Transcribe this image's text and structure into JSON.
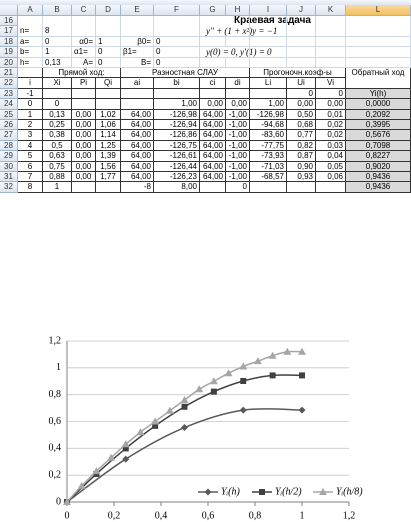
{
  "sheet": {
    "columns": [
      "A",
      "B",
      "C",
      "D",
      "E",
      "F",
      "G",
      "H",
      "I",
      "J",
      "K",
      "L"
    ],
    "rows": [
      {
        "n": "16",
        "cells": [
          null,
          null,
          null,
          null,
          null,
          null,
          "Краевая задача",
          null,
          null,
          null,
          null,
          null
        ]
      },
      {
        "n": "17",
        "cells": [
          "n=",
          "8",
          null,
          null,
          null,
          null,
          "y'' + (1 + x²)y = −1",
          null,
          null,
          null,
          null,
          null
        ]
      },
      {
        "n": "18",
        "cells": [
          "a=",
          "0",
          "α0=",
          "1",
          "β0=",
          "0",
          null,
          null,
          null,
          null,
          null,
          null
        ]
      },
      {
        "n": "19",
        "cells": [
          "b=",
          "1",
          "α1=",
          "0",
          "β1=",
          "0",
          "y(0) = 0,   y'(1) = 0",
          null,
          null,
          null,
          null,
          null
        ]
      },
      {
        "n": "20",
        "cells": [
          "h=",
          "0,13",
          "A=",
          "0",
          "B=",
          "0",
          null,
          null,
          null,
          null,
          null,
          null
        ]
      },
      {
        "n": "21",
        "cells": [
          null,
          "Прямой ход:",
          null,
          null,
          "Разностная СЛАУ",
          null,
          null,
          null,
          "Прогоночн.коэф-ы",
          null,
          null,
          "Обратный ход"
        ]
      },
      {
        "n": "22",
        "cells": [
          "i",
          "Xi",
          "Pi",
          "Qi",
          "ai",
          "bi",
          "ci",
          "di",
          "Li",
          "Ui",
          "Vi",
          null
        ]
      },
      {
        "n": "23",
        "cells": [
          "-1",
          null,
          null,
          null,
          null,
          null,
          null,
          null,
          null,
          "0",
          "0",
          "Yi(h)"
        ]
      },
      {
        "n": "24",
        "cells": [
          "0",
          "0",
          null,
          null,
          null,
          "1,00",
          "0,00",
          "0,00",
          "1,00",
          "0,00",
          "0,00",
          "0,0000"
        ]
      },
      {
        "n": "25",
        "cells": [
          "1",
          "0,13",
          "0,00",
          "1,02",
          "64,00",
          "-126,98",
          "64,00",
          "-1,00",
          "-126,98",
          "0,50",
          "0,01",
          "0,2092"
        ]
      },
      {
        "n": "26",
        "cells": [
          "2",
          "0,25",
          "0,00",
          "1,06",
          "64,00",
          "-126,94",
          "64,00",
          "-1,00",
          "-94,68",
          "0,68",
          "0,02",
          "0,3995"
        ]
      },
      {
        "n": "27",
        "cells": [
          "3",
          "0,38",
          "0,00",
          "1,14",
          "64,00",
          "-126,86",
          "64,00",
          "-1,00",
          "-83,60",
          "0,77",
          "0,02",
          "0,5676"
        ]
      },
      {
        "n": "28",
        "cells": [
          "4",
          "0,5",
          "0,00",
          "1,25",
          "64,00",
          "-126,75",
          "64,00",
          "-1,00",
          "-77,75",
          "0,82",
          "0,03",
          "0,7098"
        ]
      },
      {
        "n": "29",
        "cells": [
          "5",
          "0,63",
          "0,00",
          "1,39",
          "64,00",
          "-126,61",
          "64,00",
          "-1,00",
          "-73,93",
          "0,87",
          "0,04",
          "0,8227"
        ]
      },
      {
        "n": "30",
        "cells": [
          "6",
          "0,75",
          "0,00",
          "1,56",
          "64,00",
          "-126,44",
          "64,00",
          "-1,00",
          "-71,03",
          "0,90",
          "0,05",
          "0,9020"
        ]
      },
      {
        "n": "31",
        "cells": [
          "7",
          "0,88",
          "0,00",
          "1,77",
          "64,00",
          "-126,23",
          "64,00",
          "-1,00",
          "-68,57",
          "0,93",
          "0,06",
          "0,9436"
        ]
      },
      {
        "n": "32",
        "cells": [
          "8",
          "1",
          null,
          null,
          "-8",
          "8,00",
          null,
          "0",
          null,
          null,
          null,
          "0,9436"
        ]
      }
    ]
  },
  "chart_data": {
    "type": "line",
    "xlim": [
      0,
      1.2
    ],
    "ylim": [
      0,
      1.2
    ],
    "xticks": [
      0,
      {
        "value": 0.2,
        "label": "0,2"
      },
      {
        "value": 0.4,
        "label": "0,4"
      },
      {
        "value": 0.6,
        "label": "0,6"
      },
      {
        "value": 0.8,
        "label": "0,8"
      },
      1,
      {
        "value": 1.2,
        "label": "1,2"
      }
    ],
    "yticks": [
      0,
      {
        "value": 0.2,
        "label": "0,2"
      },
      {
        "value": 0.4,
        "label": "0,4"
      },
      {
        "value": 0.6,
        "label": "0,6"
      },
      {
        "value": 0.8,
        "label": "0,8"
      },
      1,
      {
        "value": 1.2,
        "label": "1,2"
      }
    ],
    "grid": true,
    "series": [
      {
        "name": "Yᵢ(h)",
        "color": "#595959",
        "marker": "diamond",
        "x": [
          0,
          0.25,
          0.5,
          0.75,
          1
        ],
        "values": [
          0,
          0.32,
          0.555,
          0.685,
          0.685
        ]
      },
      {
        "name": "Yᵢ(h/2)",
        "color": "#404040",
        "marker": "square",
        "x": [
          0,
          0.125,
          0.25,
          0.375,
          0.5,
          0.625,
          0.75,
          0.875,
          1
        ],
        "values": [
          0,
          0.2092,
          0.3995,
          0.5676,
          0.7098,
          0.8227,
          0.902,
          0.9436,
          0.9436
        ]
      },
      {
        "name": "Yᵢ(h/8)",
        "color": "#a6a6a6",
        "marker": "triangle",
        "x": [
          0,
          0.0625,
          0.125,
          0.1875,
          0.25,
          0.3125,
          0.375,
          0.4375,
          0.5,
          0.5625,
          0.625,
          0.6875,
          0.75,
          0.8125,
          0.875,
          0.9375,
          1
        ],
        "values": [
          0,
          0.12,
          0.23,
          0.33,
          0.43,
          0.52,
          0.6,
          0.68,
          0.76,
          0.84,
          0.9,
          0.96,
          1.01,
          1.05,
          1.09,
          1.12,
          1.12
        ]
      }
    ]
  }
}
